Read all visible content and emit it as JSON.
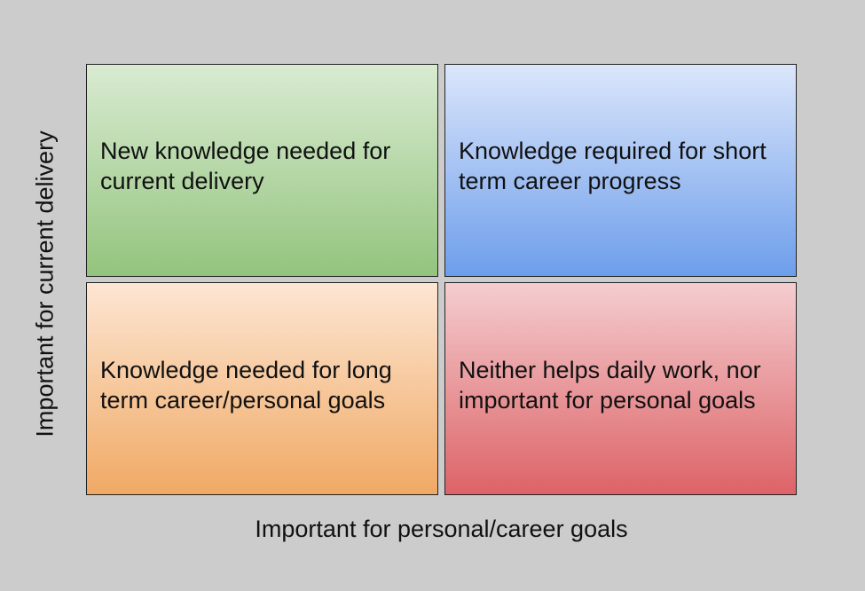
{
  "diagram": {
    "quadrants": {
      "top_left": {
        "text": "New knowledge needed for current delivery",
        "color_top": "#d9ebd2",
        "color_bottom": "#93c47d"
      },
      "top_right": {
        "text": "Knowledge required for short term career progress",
        "color_top": "#dbe6fb",
        "color_bottom": "#6d9eeb"
      },
      "bottom_left": {
        "text": "Knowledge needed for long term career/personal goals",
        "color_top": "#fde6d3",
        "color_bottom": "#f0a964"
      },
      "bottom_right": {
        "text": "Neither helps daily work, nor important for personal goals",
        "color_top": "#f4cdd0",
        "color_bottom": "#dd6367"
      }
    },
    "x_axis_label": "Important for personal/career goals",
    "y_axis_label": "Important for current delivery",
    "background_color": "#cccccc"
  }
}
